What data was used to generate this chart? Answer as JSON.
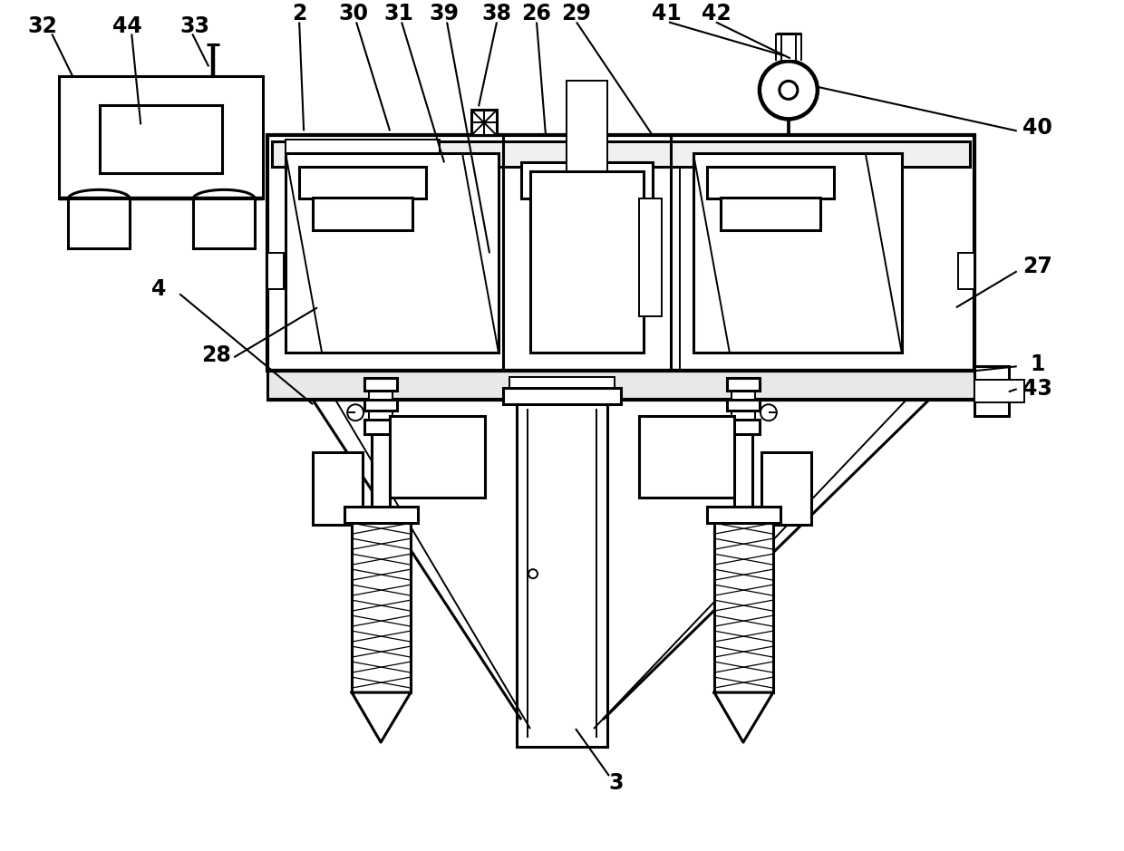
{
  "bg_color": "#ffffff",
  "lw": 2.2,
  "tlw": 1.4,
  "mlw": 3.0
}
